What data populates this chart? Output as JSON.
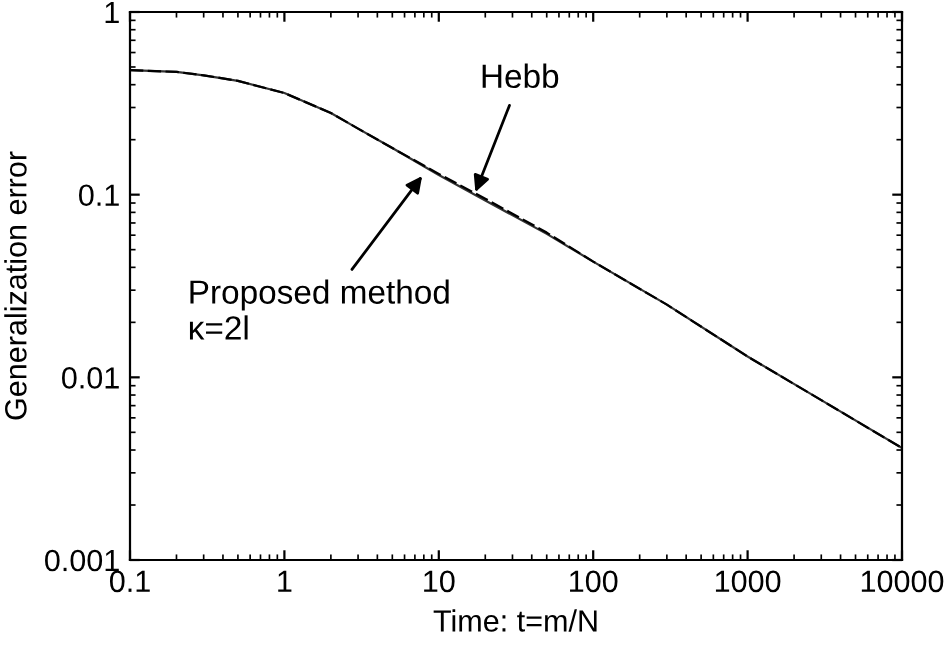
{
  "chart_data": {
    "type": "line",
    "xlabel": "Time: t=m/N",
    "ylabel": "Generalization error",
    "log": "xy",
    "xlim": [
      0.1,
      10000
    ],
    "ylim": [
      0.001,
      1
    ],
    "xticks": [
      0.1,
      1,
      10,
      100,
      1000,
      10000
    ],
    "yticks": [
      0.001,
      0.01,
      0.1,
      1
    ],
    "grid": false,
    "marker": "none",
    "x": [
      0.1,
      0.2,
      0.3,
      0.5,
      1,
      2,
      3,
      5,
      10,
      20,
      50,
      100,
      300,
      1000,
      3000,
      10000
    ],
    "series": [
      {
        "color": "#000000",
        "line_style": "dashed",
        "values": [
          0.48,
          0.47,
          0.45,
          0.42,
          0.36,
          0.28,
          0.23,
          0.18,
          0.13,
          0.095,
          0.062,
          0.043,
          0.025,
          0.013,
          0.0075,
          0.0041
        ]
      },
      {
        "color": "#333333",
        "line_style": "solid",
        "values": [
          0.48,
          0.47,
          0.45,
          0.42,
          0.36,
          0.28,
          0.23,
          0.18,
          0.128,
          0.093,
          0.061,
          0.043,
          0.025,
          0.013,
          0.0075,
          0.0041
        ]
      }
    ],
    "annotations": [
      {
        "text": "Hebb",
        "x": 17,
        "y": 0.1
      },
      {
        "text": "Proposed method\nκ=2l",
        "x": 8,
        "y": 0.13
      }
    ]
  }
}
